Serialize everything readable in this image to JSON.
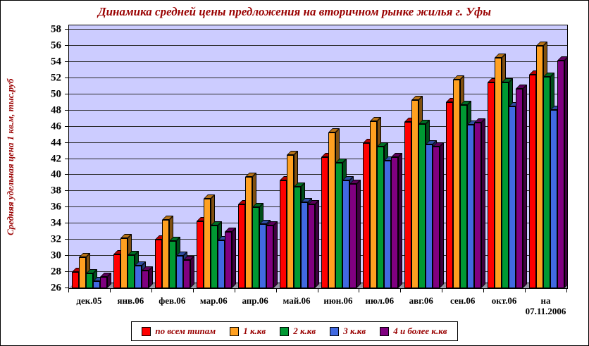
{
  "chart_data": {
    "type": "bar",
    "style": "3d-column",
    "title": "Динамика средней цены предложения на вторичном рынке жилья г. Уфы",
    "xlabel": "",
    "ylabel": "Средняя удельная цена 1 кв.м, тыс.руб",
    "ylim": [
      26,
      58
    ],
    "ytick_step": 2,
    "grid": true,
    "legend_position": "bottom",
    "colors": {
      "plot_background": "#CCCCFF",
      "chart_background": "#FFFFFF",
      "floor": "#9797A6",
      "title_text": "#990000",
      "axis_text": "#000000"
    },
    "categories": [
      "дек.05",
      "янв.06",
      "фев.06",
      "мар.06",
      "апр.06",
      "май.06",
      "июн.06",
      "июл.06",
      "авг.06",
      "сен.06",
      "окт.06",
      "на 07.11.2006"
    ],
    "series": [
      {
        "name": "по всем типам",
        "color": "#FF0000",
        "values": [
          28.0,
          30.2,
          32.0,
          34.3,
          36.4,
          39.3,
          42.2,
          44.0,
          46.6,
          49.0,
          51.5,
          52.4
        ]
      },
      {
        "name": "1 к.кв",
        "color": "#FFA020",
        "values": [
          29.8,
          32.2,
          34.5,
          37.1,
          39.8,
          42.5,
          45.3,
          46.7,
          49.3,
          51.8,
          54.5,
          56.0
        ]
      },
      {
        "name": "2 к.кв",
        "color": "#009933",
        "values": [
          27.8,
          30.1,
          31.8,
          33.8,
          36.0,
          38.6,
          41.5,
          43.5,
          46.3,
          48.7,
          51.5,
          52.2
        ]
      },
      {
        "name": "3 к.кв",
        "color": "#4169E1",
        "values": [
          26.9,
          28.8,
          30.0,
          31.9,
          33.9,
          36.6,
          39.3,
          41.8,
          43.8,
          46.2,
          48.5,
          48.1
        ]
      },
      {
        "name": "4 и более к.кв",
        "color": "#800080",
        "values": [
          27.4,
          28.2,
          29.5,
          33.0,
          33.8,
          36.4,
          38.9,
          42.2,
          43.5,
          46.5,
          50.7,
          54.2
        ]
      }
    ]
  }
}
